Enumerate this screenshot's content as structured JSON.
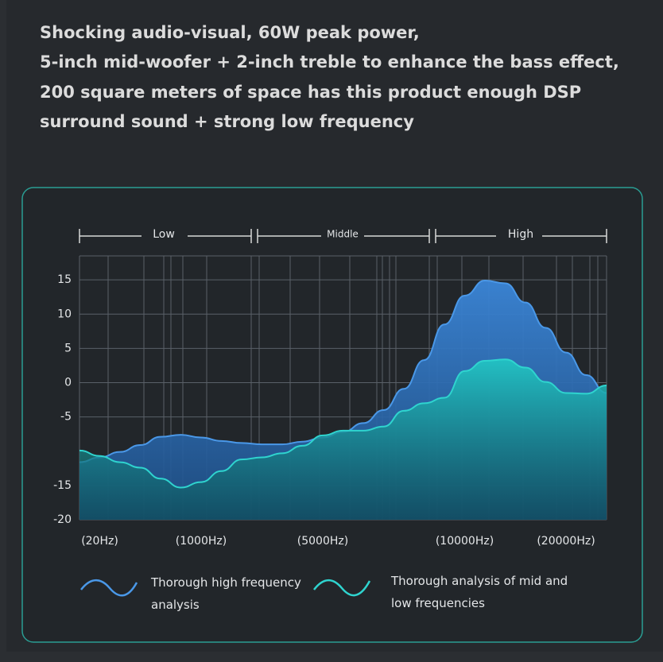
{
  "header": {
    "lines": [
      "Shocking audio-visual, 60W peak power,",
      "5-inch mid-woofer + 2-inch treble to enhance the bass effect,",
      "200 square meters of space has this product enough DSP",
      "surround sound + strong low frequency"
    ]
  },
  "chart_data": {
    "type": "area",
    "bands": [
      "Low",
      "Middle",
      "High"
    ],
    "categories": [
      null,
      "(20Hz)",
      null,
      null,
      null,
      null,
      "(1000Hz)",
      null,
      null,
      null,
      null,
      null,
      "(5000Hz)",
      null,
      null,
      null,
      null,
      null,
      null,
      "(10000Hz)",
      null,
      null,
      null,
      null,
      "(20000Hz)",
      null,
      null
    ],
    "series": [
      {
        "name": "Thorough high frequency analysis",
        "color": "#4a98e8",
        "values": [
          -11.6,
          -10.9,
          -10.1,
          -9.1,
          -7.9,
          -7.6,
          -8.0,
          -8.5,
          -8.8,
          -9.0,
          -9.0,
          -8.6,
          -8.0,
          -7.2,
          -5.9,
          -4.0,
          -0.9,
          3.3,
          8.5,
          12.7,
          14.9,
          14.5,
          11.7,
          8.0,
          4.4,
          1.1,
          -1.5
        ]
      },
      {
        "name": "Thorough analysis of mid and low frequencies",
        "color": "#2fd4cf",
        "values": [
          -9.9,
          -10.7,
          -11.6,
          -12.4,
          -14.0,
          -15.3,
          -14.5,
          -12.9,
          -11.2,
          -10.9,
          -10.3,
          -9.2,
          -7.7,
          -7.0,
          -7.0,
          -6.4,
          -4.1,
          -3.0,
          -2.2,
          1.7,
          3.2,
          3.4,
          2.2,
          0.1,
          -1.5,
          -1.6,
          -0.4
        ]
      }
    ],
    "ylim": [
      -20,
      18.5
    ],
    "yticks": [
      15,
      10,
      5,
      0,
      -5,
      -15,
      -20
    ],
    "grid": true
  }
}
